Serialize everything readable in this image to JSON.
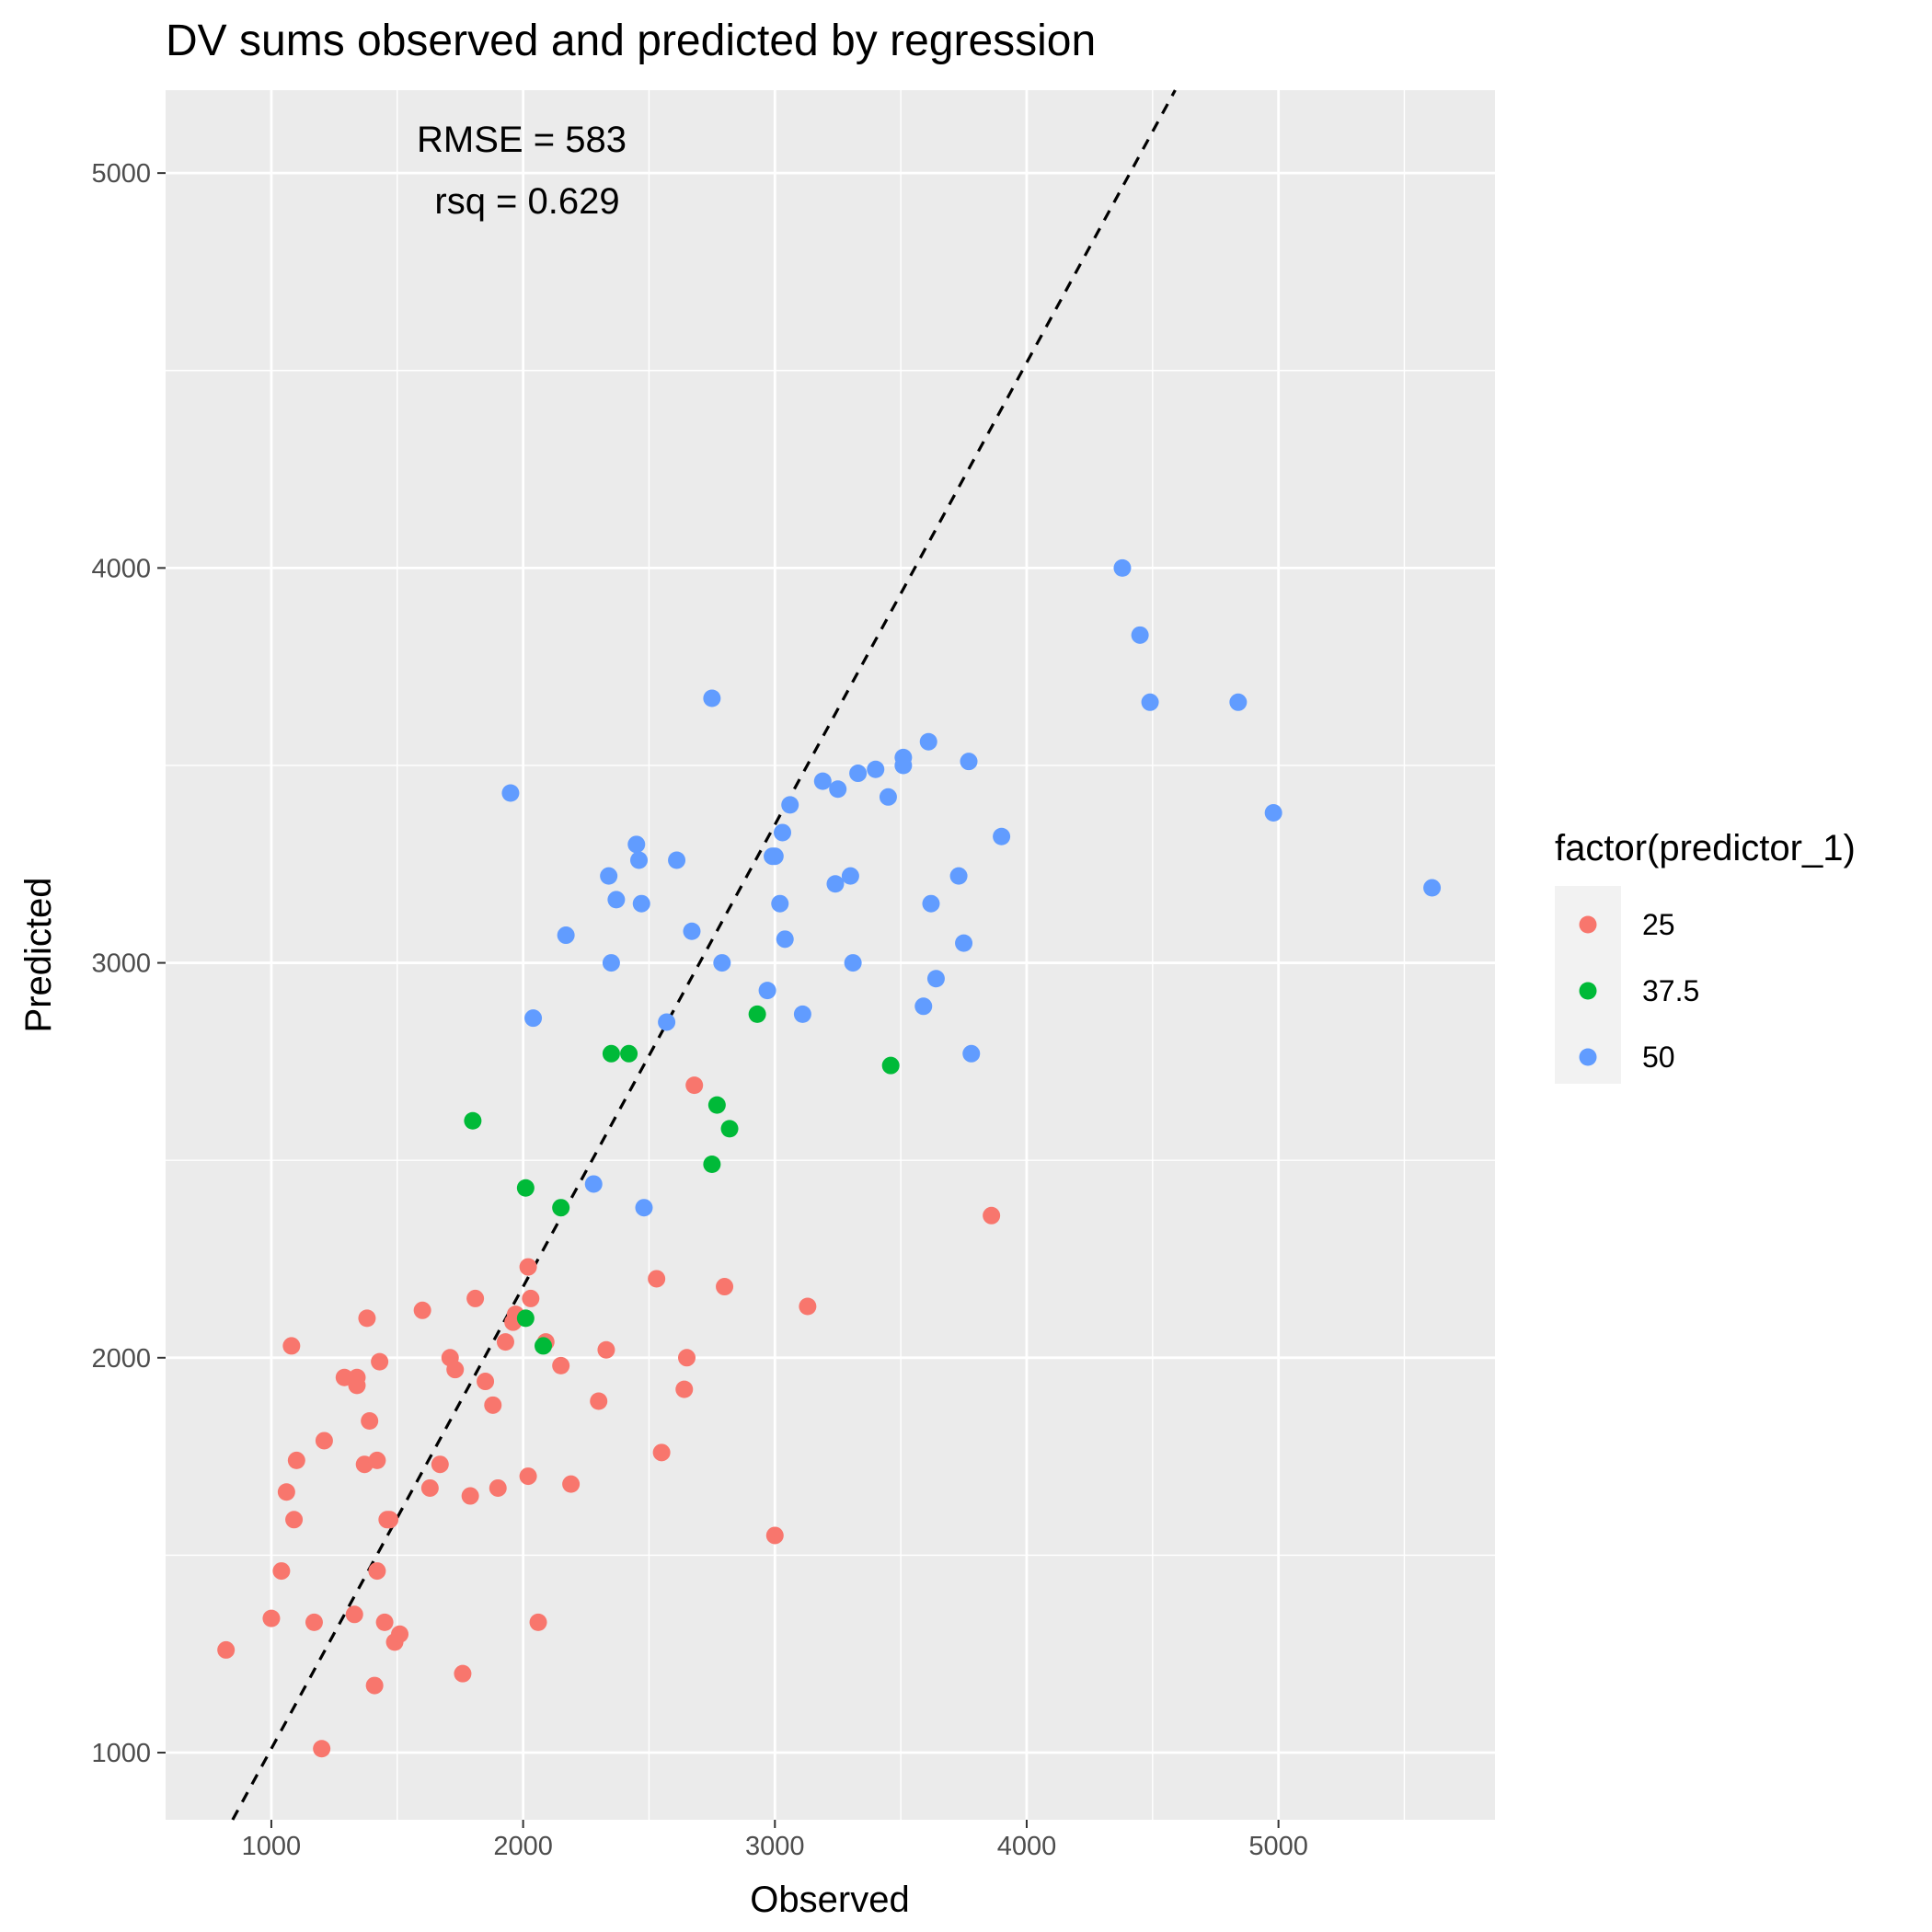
{
  "chart_data": {
    "type": "scatter",
    "title": "DV sums observed and predicted by regression",
    "xlabel": "Observed",
    "ylabel": "Predicted",
    "xlim": [
      580,
      5860
    ],
    "ylim": [
      830,
      5210
    ],
    "x_ticks": [
      1000,
      2000,
      3000,
      4000,
      5000
    ],
    "y_ticks": [
      1000,
      2000,
      3000,
      4000,
      5000
    ],
    "grid": true,
    "legend": {
      "title": "factor(predictor_1)",
      "position": "right"
    },
    "annotations": [
      "RMSE = 583",
      "rsq = 0.629"
    ],
    "reference_line": {
      "style": "dashed",
      "slope": 1.17,
      "intercept": -160
    },
    "series": [
      {
        "name": "25",
        "color": "#F8766D",
        "points": [
          [
            820,
            1260
          ],
          [
            1000,
            1340
          ],
          [
            1040,
            1460
          ],
          [
            1060,
            1660
          ],
          [
            1080,
            2030
          ],
          [
            1090,
            1590
          ],
          [
            1100,
            1740
          ],
          [
            1170,
            1330
          ],
          [
            1200,
            1010
          ],
          [
            1210,
            1790
          ],
          [
            1290,
            1950
          ],
          [
            1330,
            1350
          ],
          [
            1340,
            1930
          ],
          [
            1340,
            1950
          ],
          [
            1370,
            1730
          ],
          [
            1380,
            2100
          ],
          [
            1390,
            1840
          ],
          [
            1410,
            1170
          ],
          [
            1420,
            1740
          ],
          [
            1420,
            1460
          ],
          [
            1430,
            1990
          ],
          [
            1450,
            1330
          ],
          [
            1460,
            1590
          ],
          [
            1470,
            1590
          ],
          [
            1490,
            1280
          ],
          [
            1510,
            1300
          ],
          [
            1600,
            2120
          ],
          [
            1630,
            1670
          ],
          [
            1670,
            1730
          ],
          [
            1710,
            2000
          ],
          [
            1730,
            1970
          ],
          [
            1760,
            1200
          ],
          [
            1790,
            1650
          ],
          [
            1810,
            2150
          ],
          [
            1850,
            1940
          ],
          [
            1880,
            1880
          ],
          [
            1900,
            1670
          ],
          [
            1930,
            2040
          ],
          [
            1960,
            2090
          ],
          [
            1970,
            2110
          ],
          [
            2020,
            1700
          ],
          [
            2020,
            2230
          ],
          [
            2030,
            2150
          ],
          [
            2060,
            1330
          ],
          [
            2090,
            2040
          ],
          [
            2150,
            1980
          ],
          [
            2190,
            1680
          ],
          [
            2300,
            1890
          ],
          [
            2330,
            2020
          ],
          [
            2530,
            2200
          ],
          [
            2550,
            1760
          ],
          [
            2640,
            1920
          ],
          [
            2650,
            2000
          ],
          [
            2680,
            2690
          ],
          [
            2800,
            2180
          ],
          [
            3000,
            1550
          ],
          [
            3130,
            2130
          ],
          [
            3860,
            2360
          ]
        ]
      },
      {
        "name": "37.5",
        "color": "#00BA38",
        "points": [
          [
            1800,
            2600
          ],
          [
            2010,
            2430
          ],
          [
            2010,
            2100
          ],
          [
            2080,
            2030
          ],
          [
            2150,
            2380
          ],
          [
            2350,
            2770
          ],
          [
            2420,
            2770
          ],
          [
            2750,
            2490
          ],
          [
            2770,
            2640
          ],
          [
            2820,
            2580
          ],
          [
            2930,
            2870
          ],
          [
            3460,
            2740
          ]
        ]
      },
      {
        "name": "50",
        "color": "#619CFF",
        "points": [
          [
            1950,
            3430
          ],
          [
            2040,
            2860
          ],
          [
            2170,
            3070
          ],
          [
            2280,
            2440
          ],
          [
            2340,
            3220
          ],
          [
            2350,
            3000
          ],
          [
            2370,
            3160
          ],
          [
            2450,
            3300
          ],
          [
            2460,
            3260
          ],
          [
            2470,
            3150
          ],
          [
            2480,
            2380
          ],
          [
            2570,
            2850
          ],
          [
            2610,
            3260
          ],
          [
            2670,
            3080
          ],
          [
            2750,
            3670
          ],
          [
            2790,
            3000
          ],
          [
            2970,
            2930
          ],
          [
            2990,
            3270
          ],
          [
            3000,
            3270
          ],
          [
            3020,
            3150
          ],
          [
            3030,
            3330
          ],
          [
            3040,
            3060
          ],
          [
            3060,
            3400
          ],
          [
            3110,
            2870
          ],
          [
            3190,
            3460
          ],
          [
            3240,
            3200
          ],
          [
            3250,
            3440
          ],
          [
            3300,
            3220
          ],
          [
            3310,
            3000
          ],
          [
            3330,
            3480
          ],
          [
            3400,
            3490
          ],
          [
            3450,
            3420
          ],
          [
            3510,
            3520
          ],
          [
            3510,
            3500
          ],
          [
            3590,
            2890
          ],
          [
            3610,
            3560
          ],
          [
            3620,
            3150
          ],
          [
            3640,
            2960
          ],
          [
            3730,
            3220
          ],
          [
            3750,
            3050
          ],
          [
            3770,
            3510
          ],
          [
            3780,
            2770
          ],
          [
            3900,
            3320
          ],
          [
            4380,
            4000
          ],
          [
            4450,
            3830
          ],
          [
            4490,
            3660
          ],
          [
            4840,
            3660
          ],
          [
            4980,
            3380
          ],
          [
            5610,
            3190
          ]
        ]
      }
    ]
  }
}
